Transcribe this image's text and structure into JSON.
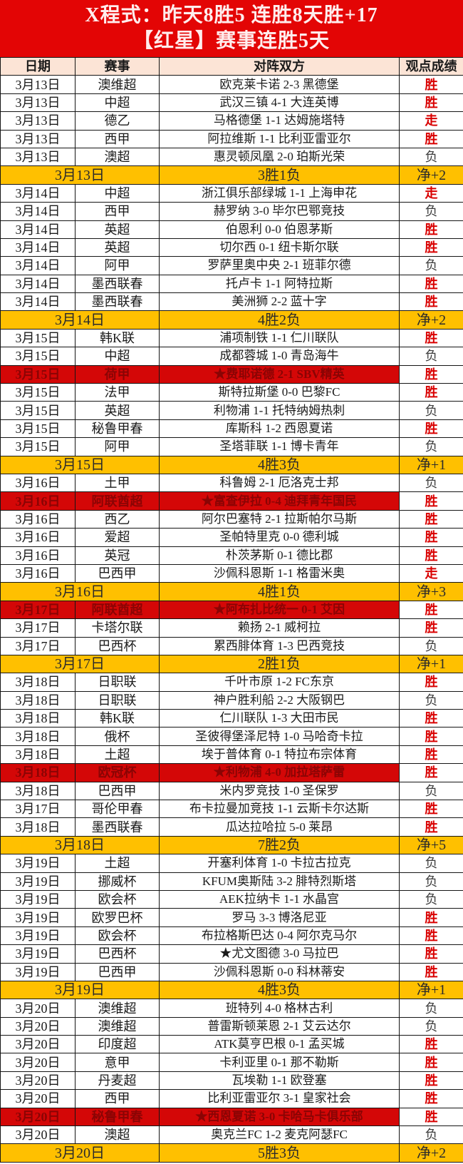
{
  "banner": {
    "line1": "X程式：昨天8胜5  连胜8天胜+17",
    "line2": "【红星】赛事连胜5天"
  },
  "table": {
    "headers": [
      "日期",
      "赛事",
      "对阵双方",
      "观点成绩"
    ],
    "rows": [
      {
        "type": "match",
        "date": "3月13日",
        "league": "澳维超",
        "match": "欧克莱卡诺 2-3 黑德堡",
        "result": "胜",
        "result_type": "win",
        "highlight": false
      },
      {
        "type": "match",
        "date": "3月13日",
        "league": "中超",
        "match": "武汉三镇 4-1 大连英博",
        "result": "胜",
        "result_type": "win",
        "highlight": false
      },
      {
        "type": "match",
        "date": "3月13日",
        "league": "德乙",
        "match": "马格德堡 1-1 达姆施塔特",
        "result": "走",
        "result_type": "push",
        "highlight": false
      },
      {
        "type": "match",
        "date": "3月13日",
        "league": "西甲",
        "match": "阿拉维斯 1-1 比利亚雷亚尔",
        "result": "胜",
        "result_type": "win",
        "highlight": false
      },
      {
        "type": "match",
        "date": "3月13日",
        "league": "澳超",
        "match": "惠灵顿凤凰 2-0 珀斯光荣",
        "result": "负",
        "result_type": "loss",
        "highlight": false
      },
      {
        "type": "summary",
        "date": "3月13日",
        "record": "3胜1负",
        "net": "净+2"
      },
      {
        "type": "match",
        "date": "3月14日",
        "league": "中超",
        "match": "浙江俱乐部绿城 1-1 上海申花",
        "result": "走",
        "result_type": "push",
        "highlight": false
      },
      {
        "type": "match",
        "date": "3月14日",
        "league": "西甲",
        "match": "赫罗纳 3-0 毕尔巴鄂竞技",
        "result": "负",
        "result_type": "loss",
        "highlight": false
      },
      {
        "type": "match",
        "date": "3月14日",
        "league": "英超",
        "match": "伯恩利 0-0 伯恩茅斯",
        "result": "胜",
        "result_type": "win",
        "highlight": false
      },
      {
        "type": "match",
        "date": "3月14日",
        "league": "英超",
        "match": "切尔西 0-1 纽卡斯尔联",
        "result": "胜",
        "result_type": "win",
        "highlight": false
      },
      {
        "type": "match",
        "date": "3月14日",
        "league": "阿甲",
        "match": "罗萨里奥中央 2-1 班菲尔德",
        "result": "负",
        "result_type": "loss",
        "highlight": false
      },
      {
        "type": "match",
        "date": "3月14日",
        "league": "墨西联春",
        "match": "托卢卡 1-1 阿特拉斯",
        "result": "胜",
        "result_type": "win",
        "highlight": false
      },
      {
        "type": "match",
        "date": "3月14日",
        "league": "墨西联春",
        "match": "美洲狮 2-2 蓝十字",
        "result": "胜",
        "result_type": "win",
        "highlight": false
      },
      {
        "type": "summary",
        "date": "3月14日",
        "record": "4胜2负",
        "net": "净+2"
      },
      {
        "type": "match",
        "date": "3月15日",
        "league": "韩K联",
        "match": "浦项制铁 1-1 仁川联队",
        "result": "胜",
        "result_type": "win",
        "highlight": false
      },
      {
        "type": "match",
        "date": "3月15日",
        "league": "中超",
        "match": "成都蓉城 1-0 青岛海牛",
        "result": "负",
        "result_type": "loss",
        "highlight": false
      },
      {
        "type": "match",
        "date": "3月15日",
        "league": "荷甲",
        "match": "★费耶诺德 2-1 SBV精英",
        "result": "胜",
        "result_type": "win",
        "highlight": true
      },
      {
        "type": "match",
        "date": "3月15日",
        "league": "法甲",
        "match": "斯特拉斯堡 0-0 巴黎FC",
        "result": "胜",
        "result_type": "win",
        "highlight": false
      },
      {
        "type": "match",
        "date": "3月15日",
        "league": "英超",
        "match": "利物浦 1-1 托特纳姆热刺",
        "result": "负",
        "result_type": "loss",
        "highlight": false
      },
      {
        "type": "match",
        "date": "3月15日",
        "league": "秘鲁甲春",
        "match": "库斯科 1-2 西恩夏诺",
        "result": "胜",
        "result_type": "win",
        "highlight": false
      },
      {
        "type": "match",
        "date": "3月15日",
        "league": "阿甲",
        "match": "圣塔菲联 1-1 博卡青年",
        "result": "负",
        "result_type": "loss",
        "highlight": false
      },
      {
        "type": "summary",
        "date": "3月15日",
        "record": "4胜3负",
        "net": "净+1"
      },
      {
        "type": "match",
        "date": "3月16日",
        "league": "土甲",
        "match": "科鲁姆 2-1 厄洛克士邦",
        "result": "负",
        "result_type": "loss",
        "highlight": false
      },
      {
        "type": "match",
        "date": "3月16日",
        "league": "阿联酋超",
        "match": "★富查伊拉 0-4 迪拜青年国民",
        "result": "胜",
        "result_type": "win",
        "highlight": true
      },
      {
        "type": "match",
        "date": "3月16日",
        "league": "西乙",
        "match": "阿尔巴塞特 2-1 拉斯帕尔马斯",
        "result": "胜",
        "result_type": "win",
        "highlight": false
      },
      {
        "type": "match",
        "date": "3月16日",
        "league": "爱超",
        "match": "圣帕特里克 0-0 德利城",
        "result": "胜",
        "result_type": "win",
        "highlight": false
      },
      {
        "type": "match",
        "date": "3月16日",
        "league": "英冠",
        "match": "朴茨茅斯 0-1 德比郡",
        "result": "胜",
        "result_type": "win",
        "highlight": false
      },
      {
        "type": "match",
        "date": "3月16日",
        "league": "巴西甲",
        "match": "沙佩科恩斯 1-1 格雷米奥",
        "result": "走",
        "result_type": "push",
        "highlight": false
      },
      {
        "type": "summary",
        "date": "3月16日",
        "record": "4胜1负",
        "net": "净+3"
      },
      {
        "type": "match",
        "date": "3月17日",
        "league": "阿联酋超",
        "match": "★阿布扎比统一 0-1 艾因",
        "result": "胜",
        "result_type": "win",
        "highlight": true
      },
      {
        "type": "match",
        "date": "3月17日",
        "league": "卡塔尔联",
        "match": "赖扬 2-1 威柯拉",
        "result": "胜",
        "result_type": "win",
        "highlight": false
      },
      {
        "type": "match",
        "date": "3月17日",
        "league": "巴西杯",
        "match": "累西腓体育 1-3 巴西竞技",
        "result": "负",
        "result_type": "loss",
        "highlight": false
      },
      {
        "type": "summary",
        "date": "3月17日",
        "record": "2胜1负",
        "net": "净+1"
      },
      {
        "type": "match",
        "date": "3月18日",
        "league": "日职联",
        "match": "千叶市原 1-2 FC东京",
        "result": "胜",
        "result_type": "win",
        "highlight": false
      },
      {
        "type": "match",
        "date": "3月18日",
        "league": "日职联",
        "match": "神户胜利船 2-2 大阪钢巴",
        "result": "负",
        "result_type": "loss",
        "highlight": false
      },
      {
        "type": "match",
        "date": "3月18日",
        "league": "韩K联",
        "match": "仁川联队 1-3 大田市民",
        "result": "胜",
        "result_type": "win",
        "highlight": false
      },
      {
        "type": "match",
        "date": "3月18日",
        "league": "俄杯",
        "match": "圣彼得堡泽尼特 1-0 马哈奇卡拉",
        "result": "胜",
        "result_type": "win",
        "highlight": false
      },
      {
        "type": "match",
        "date": "3月18日",
        "league": "土超",
        "match": "埃于普体育 0-1 特拉布宗体育",
        "result": "胜",
        "result_type": "win",
        "highlight": false
      },
      {
        "type": "match",
        "date": "3月18日",
        "league": "欧冠杯",
        "match": "★利物浦 4-0 加拉塔萨雷",
        "result": "胜",
        "result_type": "win",
        "highlight": true
      },
      {
        "type": "match",
        "date": "3月18日",
        "league": "巴西甲",
        "match": "米内罗竞技 1-0 圣保罗",
        "result": "负",
        "result_type": "loss",
        "highlight": false
      },
      {
        "type": "match",
        "date": "3月17日",
        "league": "哥伦甲春",
        "match": "布卡拉曼加竞技 1-1 云斯卡尔达斯",
        "result": "胜",
        "result_type": "win",
        "highlight": false
      },
      {
        "type": "match",
        "date": "3月18日",
        "league": "墨西联春",
        "match": "瓜达拉哈拉 5-0 莱昂",
        "result": "胜",
        "result_type": "win",
        "highlight": false
      },
      {
        "type": "summary",
        "date": "3月18日",
        "record": "7胜2负",
        "net": "净+5"
      },
      {
        "type": "match",
        "date": "3月19日",
        "league": "土超",
        "match": "开塞利体育 1-0 卡拉古拉克",
        "result": "负",
        "result_type": "loss",
        "highlight": false
      },
      {
        "type": "match",
        "date": "3月19日",
        "league": "挪威杯",
        "match": "KFUM奥斯陆 3-2 腓特烈斯塔",
        "result": "负",
        "result_type": "loss",
        "highlight": false
      },
      {
        "type": "match",
        "date": "3月19日",
        "league": "欧会杯",
        "match": "AEK拉纳卡 1-1 水晶宫",
        "result": "负",
        "result_type": "loss",
        "highlight": false
      },
      {
        "type": "match",
        "date": "3月19日",
        "league": "欧罗巴杯",
        "match": "罗马 3-3 博洛尼亚",
        "result": "胜",
        "result_type": "win",
        "highlight": false
      },
      {
        "type": "match",
        "date": "3月19日",
        "league": "欧会杯",
        "match": "布拉格斯巴达 0-4 阿尔克马尔",
        "result": "胜",
        "result_type": "win",
        "highlight": false
      },
      {
        "type": "match",
        "date": "3月19日",
        "league": "巴西杯",
        "match": "★尤文图德 3-0 马拉巴",
        "result": "胜",
        "result_type": "win",
        "highlight": false
      },
      {
        "type": "match",
        "date": "3月19日",
        "league": "巴西甲",
        "match": "沙佩科恩斯 0-0 科林蒂安",
        "result": "胜",
        "result_type": "win",
        "highlight": false
      },
      {
        "type": "summary",
        "date": "3月19日",
        "record": "4胜3负",
        "net": "净+1"
      },
      {
        "type": "match",
        "date": "3月20日",
        "league": "澳维超",
        "match": "班特列 4-0 格林古利",
        "result": "负",
        "result_type": "loss",
        "highlight": false
      },
      {
        "type": "match",
        "date": "3月20日",
        "league": "澳维超",
        "match": "普雷斯顿莱恩 2-1 艾云达尔",
        "result": "负",
        "result_type": "loss",
        "highlight": false
      },
      {
        "type": "match",
        "date": "3月20日",
        "league": "印度超",
        "match": "ATK莫亨巴根 0-1 孟买城",
        "result": "胜",
        "result_type": "win",
        "highlight": false
      },
      {
        "type": "match",
        "date": "3月20日",
        "league": "意甲",
        "match": "卡利亚里 0-1 那不勒斯",
        "result": "胜",
        "result_type": "win",
        "highlight": false
      },
      {
        "type": "match",
        "date": "3月20日",
        "league": "丹麦超",
        "match": "瓦埃勒 1-1 欧登塞",
        "result": "胜",
        "result_type": "win",
        "highlight": false
      },
      {
        "type": "match",
        "date": "3月20日",
        "league": "西甲",
        "match": "比利亚雷亚尔 3-1 皇家社会",
        "result": "胜",
        "result_type": "win",
        "highlight": false
      },
      {
        "type": "match",
        "date": "3月20日",
        "league": "秘鲁甲春",
        "match": "★西恩夏诺 3-0 卡哈马卡俱乐部",
        "result": "胜",
        "result_type": "win",
        "highlight": true
      },
      {
        "type": "match",
        "date": "3月20日",
        "league": "澳超",
        "match": "奥克兰FC 1-2 麦克阿瑟FC",
        "result": "负",
        "result_type": "loss",
        "highlight": false
      },
      {
        "type": "summary",
        "date": "3月20日",
        "record": "5胜3负",
        "net": "净+2"
      }
    ]
  },
  "colors": {
    "banner_bg": "#e30505",
    "banner_text": "#ffeded",
    "header_bg": "#fce4d6",
    "win_bg": "#fce4d6",
    "win_text": "#d90000",
    "push_text": "#d90000",
    "loss_bg": "#e7e6e6",
    "summary_bg": "#ffc000",
    "featured_row_bg": "#d40707",
    "featured_row_text": "#8a0404",
    "grid_border": "#151515"
  }
}
